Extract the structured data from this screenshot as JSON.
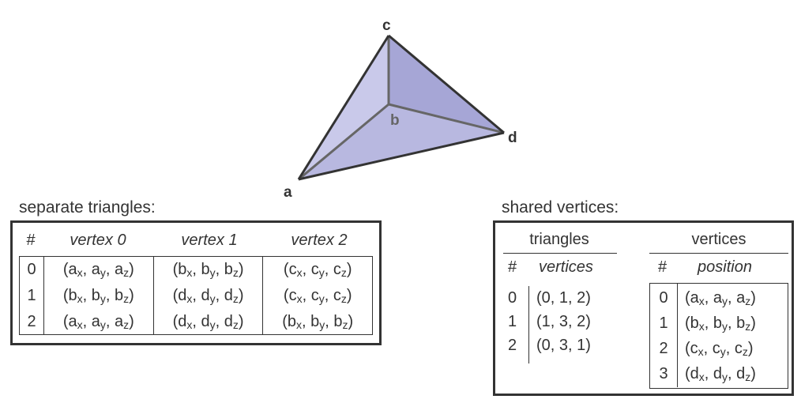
{
  "mesh": {
    "vertices": {
      "a": "a",
      "b": "b",
      "c": "c",
      "d": "d"
    },
    "colors": {
      "face_light": "#c9c9ea",
      "face_mid": "#b8b8e0",
      "face_dark": "#a6a6d6",
      "edge": "#333333",
      "hidden_edge": "#666666"
    }
  },
  "separate": {
    "heading": "separate triangles:",
    "columns": [
      "#",
      "vertex 0",
      "vertex 1",
      "vertex 2"
    ],
    "rows": [
      {
        "index": "0",
        "v": [
          [
            "a",
            "a",
            "a"
          ],
          [
            "b",
            "b",
            "b"
          ],
          [
            "c",
            "c",
            "c"
          ]
        ]
      },
      {
        "index": "1",
        "v": [
          [
            "b",
            "b",
            "b"
          ],
          [
            "d",
            "d",
            "d"
          ],
          [
            "c",
            "c",
            "c"
          ]
        ]
      },
      {
        "index": "2",
        "v": [
          [
            "a",
            "a",
            "a"
          ],
          [
            "d",
            "d",
            "d"
          ],
          [
            "b",
            "b",
            "b"
          ]
        ]
      }
    ]
  },
  "shared": {
    "heading": "shared vertices:",
    "triangles": {
      "title": "triangles",
      "columns": [
        "#",
        "vertices"
      ],
      "rows": [
        {
          "index": "0",
          "verts": "(0, 1, 2)"
        },
        {
          "index": "1",
          "verts": "(1, 3, 2)"
        },
        {
          "index": "2",
          "verts": "(0, 3, 1)"
        }
      ]
    },
    "vertices": {
      "title": "vertices",
      "columns": [
        "#",
        "position"
      ],
      "rows": [
        {
          "index": "0",
          "name": "a"
        },
        {
          "index": "1",
          "name": "b"
        },
        {
          "index": "2",
          "name": "c"
        },
        {
          "index": "3",
          "name": "d"
        }
      ]
    }
  }
}
